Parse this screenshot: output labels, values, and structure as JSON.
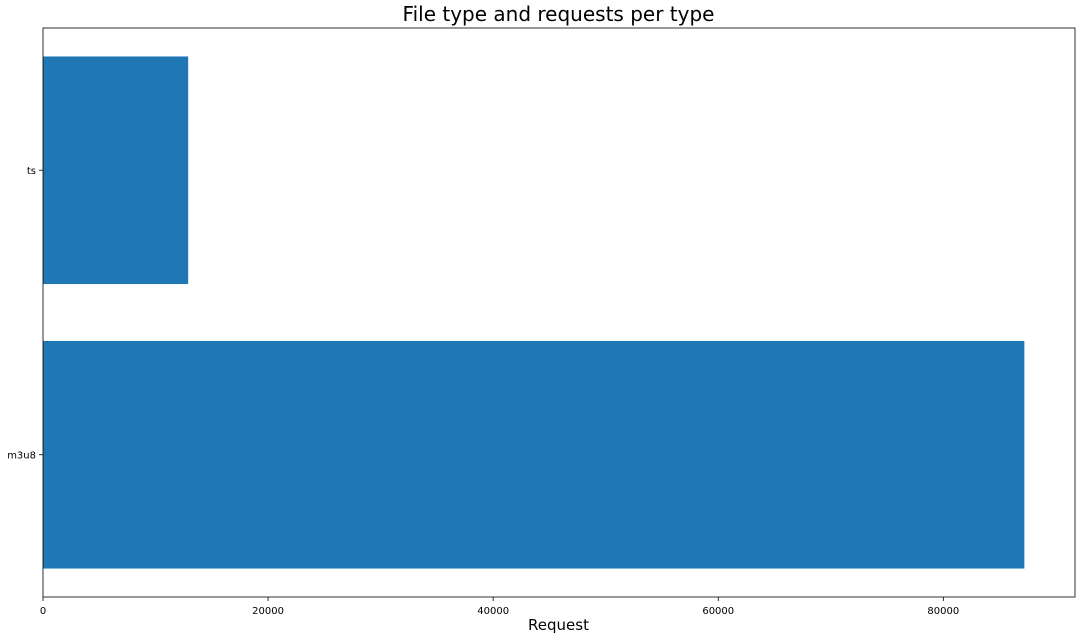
{
  "chart_data": {
    "type": "bar",
    "orientation": "horizontal",
    "title": "File type and requests per type",
    "xlabel": "Request",
    "ylabel": "",
    "categories": [
      "m3u8",
      "ts"
    ],
    "values": [
      87200,
      12900
    ],
    "xlim": [
      0,
      91700
    ],
    "xticks": [
      0,
      20000,
      40000,
      60000,
      80000
    ],
    "xtick_labels": [
      "0",
      "20000",
      "40000",
      "60000",
      "80000"
    ],
    "bar_color": "#1f77b4",
    "grid": false,
    "legend": "none"
  }
}
